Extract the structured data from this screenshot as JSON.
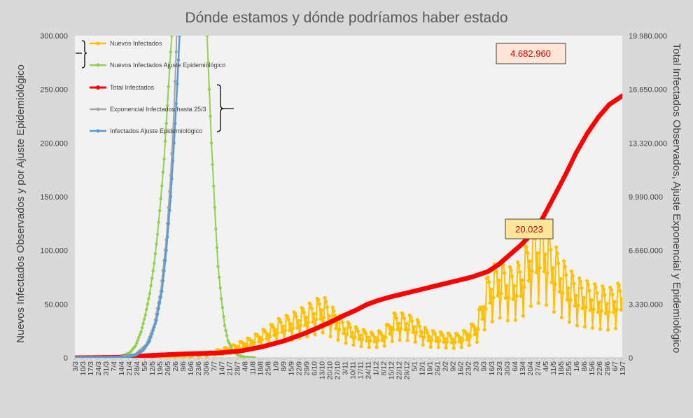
{
  "chart_data": {
    "type": "line",
    "title": "Dónde estamos y dónde podríamos haber estado",
    "ylabel_left": "Nuevos Infectados Observados y por Ajuste Epidemiológico",
    "ylabel_right": "Total Infectados Observados, Ajuste Exponencial y Epidemiológico",
    "ylim_left": [
      0,
      300000
    ],
    "ylim_right": [
      0,
      19980000
    ],
    "yticks_left": [
      "0",
      "50.000",
      "100.000",
      "150.000",
      "200.000",
      "250.000",
      "300.000"
    ],
    "yticks_right": [
      "0",
      "3.330.000",
      "6.660.000",
      "9.990.000",
      "13.320.000",
      "16.650.000",
      "19.980.000"
    ],
    "x_start_date": "3/3",
    "x_days": 498,
    "x_tick_step_days": 7,
    "x_tick_labels": [
      "3/3",
      "10/3",
      "17/3",
      "24/3",
      "31/3",
      "7/4",
      "14/4",
      "21/4",
      "28/4",
      "5/5",
      "12/5",
      "19/5",
      "26/5",
      "2/6",
      "9/6",
      "16/6",
      "23/6",
      "30/6",
      "7/7",
      "14/7",
      "21/7",
      "28/7",
      "4/8",
      "11/8",
      "18/8",
      "25/8",
      "1/9",
      "8/9",
      "15/9",
      "22/9",
      "29/9",
      "6/10",
      "13/10",
      "20/10",
      "27/10",
      "3/11",
      "10/11",
      "17/11",
      "24/11",
      "1/12",
      "8/12",
      "15/12",
      "22/12",
      "29/12",
      "5/1",
      "12/1",
      "19/1",
      "26/1",
      "2/2",
      "9/2",
      "16/2",
      "23/2",
      "2/3",
      "9/3",
      "16/3",
      "23/3",
      "30/3",
      "6/4",
      "13/4",
      "20/4",
      "27/4",
      "4/5",
      "11/5",
      "18/5",
      "25/5",
      "1/6",
      "8/6",
      "15/6",
      "22/6",
      "29/6",
      "6/7",
      "13/7"
    ],
    "grid": false,
    "legend_position": "top-left",
    "series": [
      {
        "name": "Nuevos Infectados",
        "axis": "left",
        "color": "#ffc000",
        "weekly_pattern": [
          1.0,
          0.52,
          0.85,
          1.3,
          1.25,
          1.15,
          0.82
        ],
        "trend": [
          [
            0,
            0
          ],
          [
            20,
            500
          ],
          [
            50,
            1200
          ],
          [
            90,
            1500
          ],
          [
            120,
            3500
          ],
          [
            140,
            8000
          ],
          [
            160,
            15000
          ],
          [
            175,
            22000
          ],
          [
            185,
            28000
          ],
          [
            200,
            33000
          ],
          [
            215,
            40000
          ],
          [
            225,
            45000
          ],
          [
            235,
            35000
          ],
          [
            245,
            27000
          ],
          [
            255,
            22000
          ],
          [
            270,
            18000
          ],
          [
            280,
            20000
          ],
          [
            290,
            32000
          ],
          [
            300,
            32000
          ],
          [
            310,
            28000
          ],
          [
            320,
            20000
          ],
          [
            335,
            18000
          ],
          [
            345,
            17000
          ],
          [
            355,
            20000
          ],
          [
            365,
            28000
          ],
          [
            375,
            60000
          ],
          [
            385,
            72000
          ],
          [
            395,
            65000
          ],
          [
            405,
            70000
          ],
          [
            415,
            95000
          ],
          [
            425,
            100000
          ],
          [
            435,
            82000
          ],
          [
            445,
            68000
          ],
          [
            455,
            58000
          ],
          [
            465,
            55000
          ],
          [
            475,
            52000
          ],
          [
            485,
            50000
          ],
          [
            497,
            55000
          ]
        ]
      },
      {
        "name": "Nuevos Infectados Ajuste Epidemiológico",
        "axis": "left",
        "color": "#92d050",
        "points": [
          [
            0,
            0
          ],
          [
            30,
            300
          ],
          [
            38,
            800
          ],
          [
            44,
            2000
          ],
          [
            50,
            5000
          ],
          [
            55,
            11000
          ],
          [
            60,
            24000
          ],
          [
            64,
            40000
          ],
          [
            68,
            60000
          ],
          [
            72,
            88000
          ],
          [
            75,
            115000
          ],
          [
            78,
            148000
          ],
          [
            81,
            185000
          ],
          [
            84,
            235000
          ],
          [
            86,
            270000
          ],
          [
            88,
            300000
          ],
          [
            89,
            330000
          ],
          [
            119,
            330000
          ],
          [
            120,
            300000
          ],
          [
            122,
            250000
          ],
          [
            124,
            200000
          ],
          [
            126,
            160000
          ],
          [
            128,
            120000
          ],
          [
            130,
            85000
          ],
          [
            133,
            55000
          ],
          [
            136,
            30000
          ],
          [
            139,
            16000
          ],
          [
            143,
            7000
          ],
          [
            148,
            2500
          ],
          [
            153,
            800
          ],
          [
            158,
            300
          ],
          [
            163,
            0
          ]
        ]
      },
      {
        "name": "Total Infectados",
        "axis": "right",
        "color": "#ff0000",
        "points": [
          [
            0,
            0
          ],
          [
            40,
            30000
          ],
          [
            70,
            150000
          ],
          [
            100,
            240000
          ],
          [
            130,
            300000
          ],
          [
            150,
            420000
          ],
          [
            170,
            680000
          ],
          [
            190,
            1050000
          ],
          [
            210,
            1550000
          ],
          [
            230,
            2150000
          ],
          [
            245,
            2650000
          ],
          [
            255,
            2950000
          ],
          [
            265,
            3300000
          ],
          [
            275,
            3550000
          ],
          [
            285,
            3750000
          ],
          [
            300,
            4000000
          ],
          [
            315,
            4250000
          ],
          [
            330,
            4500000
          ],
          [
            345,
            4750000
          ],
          [
            360,
            5000000
          ],
          [
            375,
            5350000
          ],
          [
            385,
            5800000
          ],
          [
            395,
            6400000
          ],
          [
            405,
            7000000
          ],
          [
            415,
            7700000
          ],
          [
            425,
            8700000
          ],
          [
            435,
            10000000
          ],
          [
            445,
            11300000
          ],
          [
            455,
            12700000
          ],
          [
            465,
            13900000
          ],
          [
            475,
            14900000
          ],
          [
            485,
            15700000
          ],
          [
            497,
            16250000
          ]
        ]
      },
      {
        "name": "Exponencial Infectados hasta 25/3",
        "axis": "left",
        "color": "#a5a5a5",
        "points": [
          [
            0,
            0
          ],
          [
            40,
            400
          ],
          [
            55,
            3000
          ],
          [
            65,
            12000
          ],
          [
            72,
            30000
          ],
          [
            78,
            62000
          ],
          [
            83,
            110000
          ],
          [
            87,
            170000
          ],
          [
            90,
            230000
          ],
          [
            92,
            285000
          ],
          [
            93,
            330000
          ]
        ]
      },
      {
        "name": "Infectados Ajuste Epidemiológico",
        "axis": "left",
        "color": "#5b9bd5",
        "points": [
          [
            0,
            0
          ],
          [
            45,
            400
          ],
          [
            55,
            2500
          ],
          [
            62,
            7000
          ],
          [
            68,
            16000
          ],
          [
            74,
            35000
          ],
          [
            79,
            62000
          ],
          [
            83,
            100000
          ],
          [
            87,
            150000
          ],
          [
            90,
            200000
          ],
          [
            93,
            255000
          ],
          [
            95,
            300000
          ],
          [
            96,
            330000
          ]
        ]
      }
    ],
    "annotations": [
      {
        "text": "4.682.960",
        "box_color": "#fce4d6",
        "border_color": "#404040"
      },
      {
        "text": "20.023",
        "box_color": "#ffe699",
        "border_color": "#404040"
      }
    ]
  }
}
